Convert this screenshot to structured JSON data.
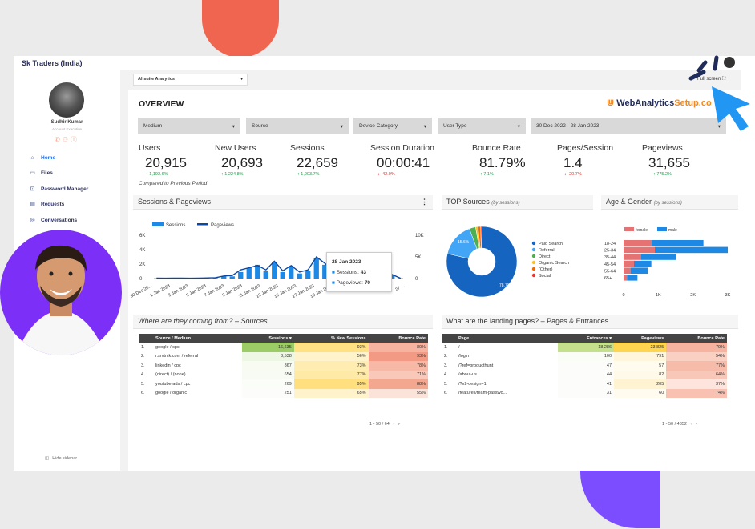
{
  "brand": "Sk Traders (India)",
  "sidebar": {
    "user_name": "Sudhir Kumar",
    "user_role": "Account Executive",
    "items": [
      {
        "label": "Home",
        "icon": "home-icon",
        "active": true
      },
      {
        "label": "Files",
        "icon": "folder-icon"
      },
      {
        "label": "Password Manager",
        "icon": "lock-icon"
      },
      {
        "label": "Requests",
        "icon": "clipboard-icon"
      },
      {
        "label": "Conversations",
        "icon": "chat-icon"
      }
    ],
    "hide_label": "Hide sidebar"
  },
  "datasource": {
    "selected": "Ahsuite Analytics"
  },
  "fullscreen_label": "Full screen",
  "report": {
    "title": "OVERVIEW",
    "logo_text_1": "WebAnalytics",
    "logo_text_2": "Setup.co",
    "filters": {
      "medium": "Medium",
      "source": "Source",
      "device": "Device Category",
      "user_type": "User Type",
      "date": "30 Dec 2022 - 28 Jan 2023"
    },
    "kpis": [
      {
        "label": "Users",
        "value": "20,915",
        "delta": "↑ 1,192.6%",
        "dir": "up"
      },
      {
        "label": "New Users",
        "value": "20,693",
        "delta": "↑ 1,224.8%",
        "dir": "up"
      },
      {
        "label": "Sessions",
        "value": "22,659",
        "delta": "↑ 1,003.7%",
        "dir": "up"
      },
      {
        "label": "Session Duration",
        "value": "00:00:41",
        "delta": "↓ -42.0%",
        "dir": "down"
      },
      {
        "label": "Bounce Rate",
        "value": "81.79%",
        "delta": "↑ 7.1%",
        "dir": "up"
      },
      {
        "label": "Pages/Session",
        "value": "1.4",
        "delta": "↓ -20.7%",
        "dir": "down"
      },
      {
        "label": "Pageviews",
        "value": "31,655",
        "delta": "↑ 775.2%",
        "dir": "up"
      }
    ],
    "compared": "Compared to Previous Period"
  },
  "panels": {
    "sessions_title": "Sessions & Pageviews",
    "sources_title": "TOP Sources",
    "sources_sub": "(by sessions)",
    "age_title": "Age & Gender",
    "age_sub": "(by sessions)",
    "where_title": "Where are they coming from? – Sources",
    "landing_title": "What are the landing pages? – Pages & Entrances"
  },
  "tooltip": {
    "date": "28 Jan 2023",
    "sessions_label": "Sessions:",
    "sessions": "43",
    "pageviews_label": "Pageviews:",
    "pageviews": "70"
  },
  "sources_table": {
    "headers": [
      "Source / Medium",
      "Sessions ▾",
      "% New Sessions",
      "Bounce Rate"
    ],
    "rows": [
      [
        "1.",
        "google / cpc",
        "16,635",
        "93%",
        "80%"
      ],
      [
        "2.",
        "r.srvtrck.com / referral",
        "3,538",
        "56%",
        "93%"
      ],
      [
        "3.",
        "linkedin / cpc",
        "867",
        "73%",
        "78%"
      ],
      [
        "4.",
        "(direct) / (none)",
        "654",
        "77%",
        "71%"
      ],
      [
        "5.",
        "youtube-ads / cpc",
        "269",
        "95%",
        "88%"
      ],
      [
        "6.",
        "google / organic",
        "251",
        "65%",
        "55%"
      ]
    ],
    "pager": "1 - 50 / 64"
  },
  "landing_table": {
    "headers": [
      "Page",
      "Entrances ▾",
      "Pageviews",
      "Bounce Rate"
    ],
    "rows": [
      [
        "1.",
        "/",
        "18,286",
        "23,825",
        "79%"
      ],
      [
        "2.",
        "/login",
        "100",
        "791",
        "54%"
      ],
      [
        "3.",
        "/?ref=producthunt",
        "47",
        "57",
        "77%"
      ],
      [
        "4.",
        "/about-us",
        "44",
        "82",
        "64%"
      ],
      [
        "5.",
        "/?v2-design=1",
        "41",
        "205",
        "37%"
      ],
      [
        "6.",
        "/features/team-passwo...",
        "31",
        "60",
        "74%"
      ]
    ],
    "pager": "1 - 50 / 4352"
  },
  "chart_data": [
    {
      "type": "bar",
      "title": "Sessions & Pageviews",
      "legend": [
        "Sessions",
        "Pageviews"
      ],
      "y_left_ticks": [
        "6K",
        "4K",
        "2K",
        "0"
      ],
      "y_right_ticks": [
        "10K",
        "5K",
        "0"
      ],
      "x_ticks": [
        "30 Dec 20...",
        "1 Jan 2023",
        "3 Jan 2023",
        "5 Jan 2023",
        "7 Jan 2023",
        "9 Jan 2023",
        "11 Jan 2023",
        "13 Jan 2023",
        "15 Jan 2023",
        "17 Jan 2023",
        "19 Jan 2023",
        "21 ...",
        "23 ...",
        "25 ...",
        "27 ..."
      ],
      "series": [
        {
          "name": "Sessions",
          "values": [
            40,
            30,
            35,
            40,
            30,
            40,
            50,
            60,
            300,
            300,
            900,
            1500,
            1900,
            1000,
            2300,
            900,
            1700,
            700,
            1100,
            2800,
            1900,
            900,
            2900,
            1000,
            1000,
            300,
            500,
            700,
            500,
            43
          ]
        },
        {
          "name": "Pageviews",
          "values": [
            100,
            80,
            90,
            100,
            80,
            100,
            150,
            200,
            600,
            700,
            2000,
            2500,
            3000,
            2000,
            4000,
            1800,
            3000,
            1500,
            2000,
            5000,
            3500,
            1800,
            5500,
            2000,
            2000,
            600,
            900,
            1200,
            900,
            70
          ]
        }
      ]
    },
    {
      "type": "pie",
      "title": "TOP Sources",
      "labels": [
        "Paid Search",
        "Referral",
        "Direct",
        "Organic Search",
        "(Other)",
        "Social"
      ],
      "values": [
        78.7,
        15.6,
        2.9,
        1.1,
        1.2,
        0.5
      ],
      "colors": [
        "#1565c0",
        "#42a5f5",
        "#4caf50",
        "#fbc02d",
        "#ef6c00",
        "#e53935"
      ]
    },
    {
      "type": "bar",
      "title": "Age & Gender",
      "legend": [
        "female",
        "male"
      ],
      "categories": [
        "18-24",
        "25-34",
        "35-44",
        "45-54",
        "55-64",
        "65+"
      ],
      "series": [
        {
          "name": "female",
          "values": [
            800,
            900,
            500,
            300,
            200,
            100
          ]
        },
        {
          "name": "male",
          "values": [
            1500,
            2100,
            1000,
            500,
            500,
            300
          ]
        }
      ],
      "x_ticks": [
        "0",
        "1K",
        "2K",
        "3K"
      ]
    }
  ]
}
